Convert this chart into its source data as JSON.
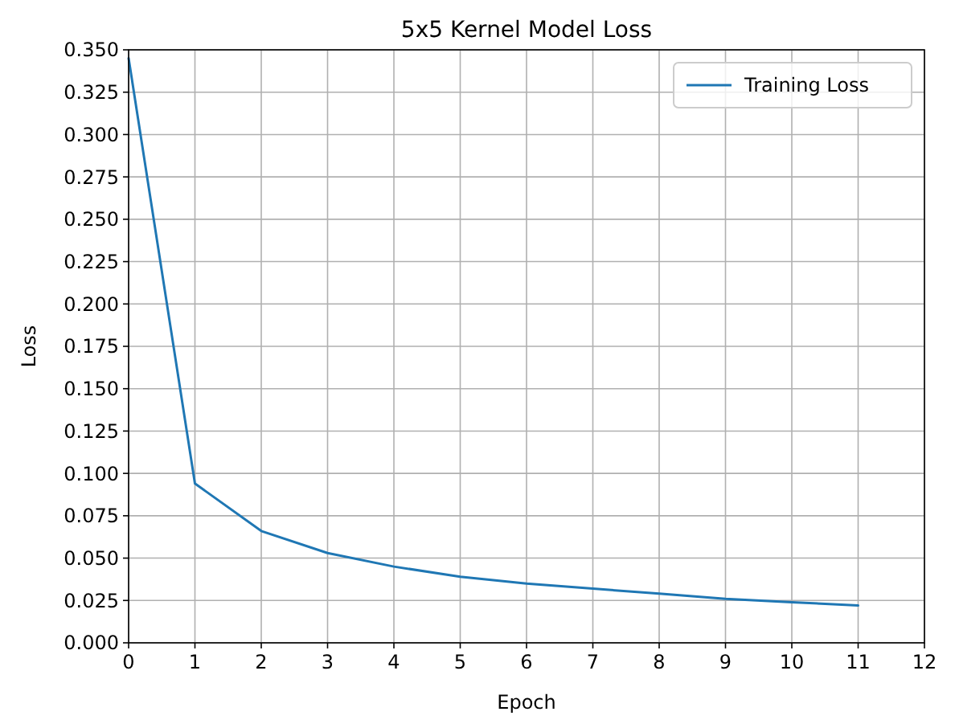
{
  "chart_data": {
    "type": "line",
    "title": "5x5 Kernel Model Loss",
    "xlabel": "Epoch",
    "ylabel": "Loss",
    "x": [
      0,
      1,
      2,
      3,
      4,
      5,
      6,
      7,
      8,
      9,
      10,
      11
    ],
    "series": [
      {
        "name": "Training Loss",
        "color": "#1f77b4",
        "values": [
          0.345,
          0.094,
          0.066,
          0.053,
          0.045,
          0.039,
          0.035,
          0.032,
          0.029,
          0.026,
          0.024,
          0.022
        ]
      }
    ],
    "xlim": [
      0,
      12
    ],
    "xticks": [
      0,
      1,
      2,
      3,
      4,
      5,
      6,
      7,
      8,
      9,
      10,
      11,
      12
    ],
    "ylim": [
      0,
      0.35
    ],
    "yticks": [
      {
        "value": 0,
        "label": "0.000"
      },
      {
        "value": 0.025,
        "label": "0.025"
      },
      {
        "value": 0.05,
        "label": "0.050"
      },
      {
        "value": 0.075,
        "label": "0.075"
      },
      {
        "value": 0.1,
        "label": "0.100"
      },
      {
        "value": 0.125,
        "label": "0.125"
      },
      {
        "value": 0.15,
        "label": "0.150"
      },
      {
        "value": 0.175,
        "label": "0.175"
      },
      {
        "value": 0.2,
        "label": "0.200"
      },
      {
        "value": 0.225,
        "label": "0.225"
      },
      {
        "value": 0.25,
        "label": "0.250"
      },
      {
        "value": 0.275,
        "label": "0.275"
      },
      {
        "value": 0.3,
        "label": "0.300"
      },
      {
        "value": 0.325,
        "label": "0.325"
      },
      {
        "value": 0.35,
        "label": "0.350"
      }
    ],
    "grid": true,
    "legend": "top right",
    "marker": "none",
    "line_style": "solid"
  }
}
